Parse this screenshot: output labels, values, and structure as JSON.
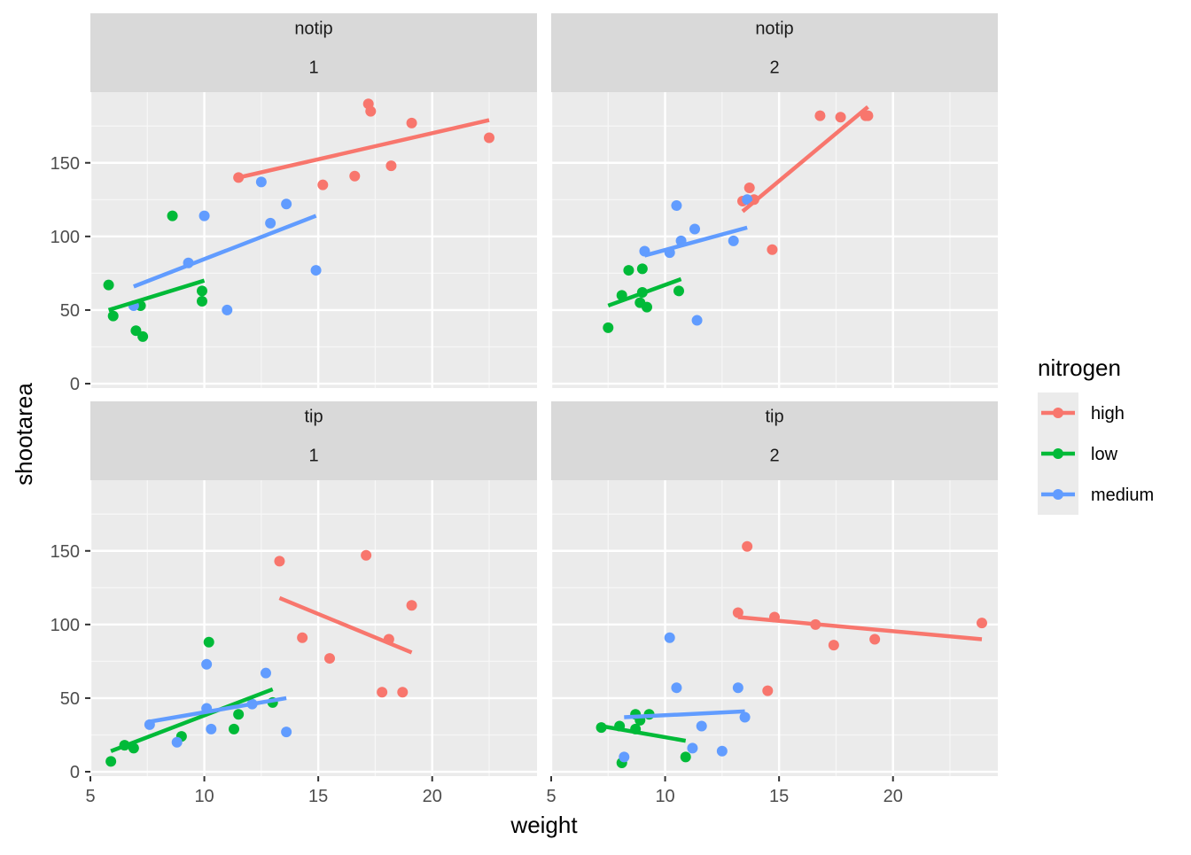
{
  "chart_data": {
    "type": "scatter",
    "xlabel": "weight",
    "ylabel": "shootarea",
    "xlim": [
      5,
      24.6
    ],
    "ylim": [
      -3,
      198
    ],
    "x_ticks": [
      5,
      10,
      15,
      20
    ],
    "y_ticks": [
      0,
      50,
      100,
      150
    ],
    "x_tick_labels": [
      "5",
      "10",
      "15",
      "20"
    ],
    "y_tick_labels": [
      "0",
      "50",
      "100",
      "150"
    ],
    "grid": true,
    "legend": {
      "title": "nitrogen",
      "position": "right",
      "entries": [
        {
          "name": "high",
          "color": "#F8766D"
        },
        {
          "name": "low",
          "color": "#00BA38"
        },
        {
          "name": "medium",
          "color": "#619CFF"
        }
      ]
    },
    "panels": [
      {
        "strip": [
          "notip",
          "1"
        ],
        "points": {
          "high": [
            [
              11.5,
              140
            ],
            [
              15.2,
              135
            ],
            [
              16.6,
              141
            ],
            [
              17.2,
              190
            ],
            [
              17.3,
              185
            ],
            [
              18.2,
              148
            ],
            [
              19.1,
              177
            ],
            [
              22.5,
              167
            ]
          ],
          "low": [
            [
              5.8,
              67
            ],
            [
              6.0,
              46
            ],
            [
              7.0,
              36
            ],
            [
              7.2,
              53
            ],
            [
              7.3,
              32
            ],
            [
              8.6,
              114
            ],
            [
              9.9,
              56
            ],
            [
              9.9,
              63
            ]
          ],
          "medium": [
            [
              6.9,
              53
            ],
            [
              9.3,
              82
            ],
            [
              10.0,
              114
            ],
            [
              11.0,
              50
            ],
            [
              12.5,
              137
            ],
            [
              12.9,
              109
            ],
            [
              13.6,
              122
            ],
            [
              14.9,
              77
            ]
          ]
        },
        "fits": {
          "high": [
            [
              11.5,
              140
            ],
            [
              22.5,
              179
            ]
          ],
          "low": [
            [
              5.8,
              50
            ],
            [
              10.0,
              70
            ]
          ],
          "medium": [
            [
              6.9,
              66
            ],
            [
              14.9,
              114
            ]
          ]
        }
      },
      {
        "strip": [
          "notip",
          "2"
        ],
        "points": {
          "high": [
            [
              13.4,
              124
            ],
            [
              13.7,
              133
            ],
            [
              13.9,
              125
            ],
            [
              14.7,
              91
            ],
            [
              16.8,
              182
            ],
            [
              17.7,
              181
            ],
            [
              18.8,
              182
            ],
            [
              18.9,
              182
            ]
          ],
          "low": [
            [
              7.5,
              38
            ],
            [
              8.1,
              60
            ],
            [
              8.4,
              77
            ],
            [
              8.9,
              55
            ],
            [
              9.0,
              62
            ],
            [
              9.0,
              78
            ],
            [
              9.2,
              52
            ],
            [
              10.6,
              63
            ]
          ],
          "medium": [
            [
              9.1,
              90
            ],
            [
              10.2,
              89
            ],
            [
              10.5,
              121
            ],
            [
              10.7,
              97
            ],
            [
              11.3,
              105
            ],
            [
              11.4,
              43
            ],
            [
              13.0,
              97
            ],
            [
              13.6,
              125
            ]
          ]
        },
        "fits": {
          "high": [
            [
              13.4,
              117
            ],
            [
              18.9,
              188
            ]
          ],
          "low": [
            [
              7.5,
              53
            ],
            [
              10.7,
              71
            ]
          ],
          "medium": [
            [
              9.1,
              87
            ],
            [
              13.6,
              106
            ]
          ]
        }
      },
      {
        "strip": [
          "tip",
          "1"
        ],
        "points": {
          "high": [
            [
              13.3,
              143
            ],
            [
              14.3,
              91
            ],
            [
              15.5,
              77
            ],
            [
              17.1,
              147
            ],
            [
              17.8,
              54
            ],
            [
              18.1,
              90
            ],
            [
              18.7,
              54
            ],
            [
              19.1,
              113
            ]
          ],
          "low": [
            [
              5.9,
              7
            ],
            [
              6.5,
              18
            ],
            [
              6.9,
              16
            ],
            [
              9.0,
              24
            ],
            [
              10.2,
              88
            ],
            [
              11.3,
              29
            ],
            [
              11.5,
              39
            ],
            [
              13.0,
              47
            ]
          ],
          "medium": [
            [
              7.6,
              32
            ],
            [
              8.8,
              20
            ],
            [
              10.1,
              73
            ],
            [
              10.1,
              43
            ],
            [
              10.3,
              29
            ],
            [
              12.1,
              46
            ],
            [
              12.7,
              67
            ],
            [
              13.6,
              27
            ]
          ]
        },
        "fits": {
          "high": [
            [
              13.3,
              118
            ],
            [
              19.1,
              81
            ]
          ],
          "low": [
            [
              5.9,
              14
            ],
            [
              13.0,
              56
            ]
          ],
          "medium": [
            [
              7.6,
              34
            ],
            [
              13.6,
              50
            ]
          ]
        }
      },
      {
        "strip": [
          "tip",
          "2"
        ],
        "points": {
          "high": [
            [
              13.2,
              108
            ],
            [
              13.6,
              153
            ],
            [
              14.5,
              55
            ],
            [
              14.8,
              105
            ],
            [
              16.6,
              100
            ],
            [
              17.4,
              86
            ],
            [
              19.2,
              90
            ],
            [
              23.9,
              101
            ]
          ],
          "low": [
            [
              7.2,
              30
            ],
            [
              8.0,
              31
            ],
            [
              8.1,
              6
            ],
            [
              8.7,
              29
            ],
            [
              8.7,
              39
            ],
            [
              8.9,
              35
            ],
            [
              9.3,
              39
            ],
            [
              10.9,
              10
            ]
          ],
          "medium": [
            [
              8.2,
              10
            ],
            [
              10.2,
              91
            ],
            [
              10.5,
              57
            ],
            [
              11.2,
              16
            ],
            [
              11.6,
              31
            ],
            [
              12.5,
              14
            ],
            [
              13.2,
              57
            ],
            [
              13.5,
              37
            ]
          ]
        },
        "fits": {
          "high": [
            [
              13.2,
              105
            ],
            [
              23.9,
              90
            ]
          ],
          "low": [
            [
              7.2,
              31
            ],
            [
              10.9,
              21
            ]
          ],
          "medium": [
            [
              8.2,
              37
            ],
            [
              13.5,
              41
            ]
          ]
        }
      }
    ]
  }
}
